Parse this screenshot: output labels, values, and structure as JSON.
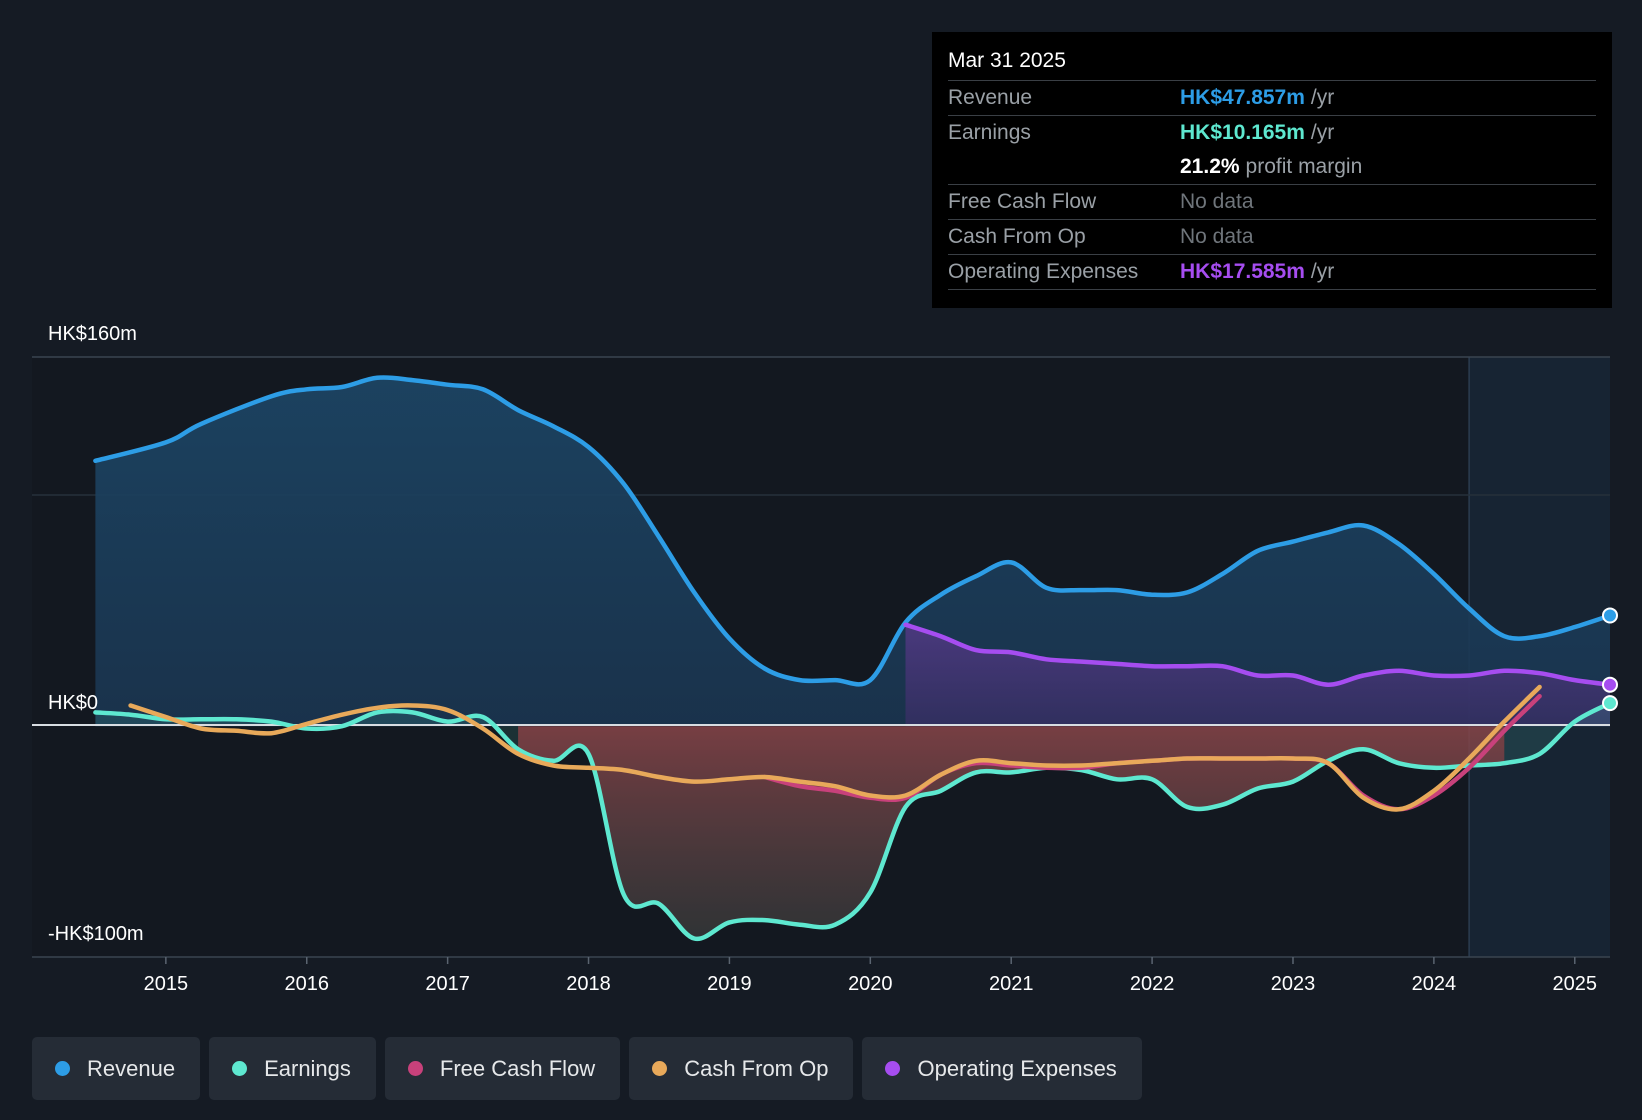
{
  "tooltip": {
    "date": "Mar 31 2025",
    "rows": [
      {
        "label": "Revenue",
        "value": "HK$47.857m",
        "unit": "/yr",
        "color": "#2d9de6"
      },
      {
        "label": "Earnings",
        "value": "HK$10.165m",
        "unit": "/yr",
        "color": "#5ee8d0"
      },
      {
        "label": "",
        "value": "21.2%",
        "unit": "profit margin",
        "color": "#ffffff"
      },
      {
        "label": "Free Cash Flow",
        "value": "No data",
        "unit": "",
        "color": "#6f757b"
      },
      {
        "label": "Cash From Op",
        "value": "No data",
        "unit": "",
        "color": "#6f757b"
      },
      {
        "label": "Operating Expenses",
        "value": "HK$17.585m",
        "unit": "/yr",
        "color": "#a64df0"
      }
    ]
  },
  "legend": [
    {
      "label": "Revenue",
      "color": "#2d9de6"
    },
    {
      "label": "Earnings",
      "color": "#5ee8d0"
    },
    {
      "label": "Free Cash Flow",
      "color": "#c8417b"
    },
    {
      "label": "Cash From Op",
      "color": "#e8a95a"
    },
    {
      "label": "Operating Expenses",
      "color": "#a64df0"
    }
  ],
  "chart_data": {
    "type": "area",
    "title": "",
    "y_labels": [
      "HK$160m",
      "HK$0",
      "-HK$100m"
    ],
    "ylim": [
      -100,
      160
    ],
    "xlim": [
      2014.05,
      2025.25
    ],
    "x_ticks": [
      2015,
      2016,
      2017,
      2018,
      2019,
      2020,
      2021,
      2022,
      2023,
      2024,
      2025
    ],
    "x_tick_labels": [
      "2015",
      "2016",
      "2017",
      "2018",
      "2019",
      "2020",
      "2021",
      "2022",
      "2023",
      "2024",
      "2025"
    ],
    "forecast_start": 2024.25,
    "series": [
      {
        "name": "Revenue",
        "color": "#2d9de6",
        "points": [
          [
            2014.5,
            115
          ],
          [
            2015.0,
            123
          ],
          [
            2015.25,
            131
          ],
          [
            2015.75,
            143
          ],
          [
            2016.0,
            146
          ],
          [
            2016.25,
            147
          ],
          [
            2016.5,
            151
          ],
          [
            2016.75,
            150
          ],
          [
            2017.0,
            148
          ],
          [
            2017.25,
            146
          ],
          [
            2017.5,
            137
          ],
          [
            2017.75,
            130
          ],
          [
            2018.0,
            121
          ],
          [
            2018.25,
            105
          ],
          [
            2018.5,
            82
          ],
          [
            2018.75,
            58
          ],
          [
            2019.0,
            38
          ],
          [
            2019.25,
            25
          ],
          [
            2019.5,
            20
          ],
          [
            2019.75,
            20
          ],
          [
            2020.0,
            20
          ],
          [
            2020.25,
            45
          ],
          [
            2020.5,
            57
          ],
          [
            2020.75,
            65
          ],
          [
            2021.0,
            71
          ],
          [
            2021.25,
            60
          ],
          [
            2021.5,
            59
          ],
          [
            2021.75,
            59
          ],
          [
            2022.0,
            57
          ],
          [
            2022.25,
            58
          ],
          [
            2022.5,
            66
          ],
          [
            2022.75,
            76
          ],
          [
            2023.0,
            80
          ],
          [
            2023.25,
            84
          ],
          [
            2023.5,
            87
          ],
          [
            2023.75,
            79
          ],
          [
            2024.0,
            66
          ],
          [
            2024.25,
            51
          ],
          [
            2024.5,
            39
          ],
          [
            2024.75,
            39
          ],
          [
            2025.0,
            43
          ],
          [
            2025.25,
            48
          ]
        ]
      },
      {
        "name": "Earnings",
        "color": "#5ee8d0",
        "points": [
          [
            2014.5,
            6
          ],
          [
            2014.75,
            5
          ],
          [
            2015.0,
            3
          ],
          [
            2015.25,
            3
          ],
          [
            2015.5,
            3
          ],
          [
            2015.75,
            2
          ],
          [
            2016.0,
            -1
          ],
          [
            2016.25,
            0
          ],
          [
            2016.5,
            6
          ],
          [
            2016.75,
            6
          ],
          [
            2017.0,
            2
          ],
          [
            2017.25,
            4
          ],
          [
            2017.5,
            -10
          ],
          [
            2017.75,
            -15
          ],
          [
            2018.0,
            -12
          ],
          [
            2018.25,
            -73
          ],
          [
            2018.5,
            -77
          ],
          [
            2018.75,
            -92
          ],
          [
            2019.0,
            -85
          ],
          [
            2019.25,
            -84
          ],
          [
            2019.5,
            -86
          ],
          [
            2019.75,
            -86
          ],
          [
            2020.0,
            -72
          ],
          [
            2020.25,
            -35
          ],
          [
            2020.5,
            -28
          ],
          [
            2020.75,
            -20
          ],
          [
            2021.0,
            -20
          ],
          [
            2021.25,
            -18
          ],
          [
            2021.5,
            -19
          ],
          [
            2021.75,
            -23
          ],
          [
            2022.0,
            -23
          ],
          [
            2022.25,
            -35
          ],
          [
            2022.5,
            -34
          ],
          [
            2022.75,
            -27
          ],
          [
            2023.0,
            -24
          ],
          [
            2023.25,
            -15
          ],
          [
            2023.5,
            -10
          ],
          [
            2023.75,
            -16
          ],
          [
            2024.0,
            -18
          ],
          [
            2024.25,
            -17
          ],
          [
            2024.5,
            -16
          ],
          [
            2024.75,
            -12
          ],
          [
            2025.0,
            2
          ],
          [
            2025.25,
            10
          ]
        ]
      },
      {
        "name": "Free Cash Flow",
        "color": "#c8417b",
        "points": [
          [
            2019.25,
            -22
          ],
          [
            2019.5,
            -26
          ],
          [
            2019.75,
            -28
          ],
          [
            2020.0,
            -31
          ],
          [
            2020.25,
            -31
          ],
          [
            2020.5,
            -21
          ],
          [
            2020.75,
            -16
          ],
          [
            2021.0,
            -17
          ],
          [
            2021.25,
            -18
          ],
          [
            2021.5,
            -18
          ],
          [
            2021.75,
            -16
          ],
          [
            2022.0,
            -15
          ],
          [
            2022.25,
            -14
          ],
          [
            2022.5,
            -14
          ],
          [
            2022.75,
            -14
          ],
          [
            2023.0,
            -14
          ],
          [
            2023.25,
            -16
          ],
          [
            2023.5,
            -30
          ],
          [
            2023.75,
            -36
          ],
          [
            2024.0,
            -30
          ],
          [
            2024.25,
            -18
          ],
          [
            2024.5,
            -2
          ],
          [
            2024.75,
            13
          ]
        ]
      },
      {
        "name": "Cash From Op",
        "color": "#e8a95a",
        "points": [
          [
            2014.75,
            9
          ],
          [
            2015.0,
            4
          ],
          [
            2015.25,
            -1
          ],
          [
            2015.5,
            -2
          ],
          [
            2015.75,
            -3
          ],
          [
            2016.0,
            1
          ],
          [
            2016.25,
            5
          ],
          [
            2016.5,
            8
          ],
          [
            2016.75,
            9
          ],
          [
            2017.0,
            7
          ],
          [
            2017.25,
            -1
          ],
          [
            2017.5,
            -12
          ],
          [
            2017.75,
            -17
          ],
          [
            2018.0,
            -18
          ],
          [
            2018.25,
            -19
          ],
          [
            2018.5,
            -22
          ],
          [
            2018.75,
            -24
          ],
          [
            2019.0,
            -23
          ],
          [
            2019.25,
            -22
          ],
          [
            2019.5,
            -24
          ],
          [
            2019.75,
            -26
          ],
          [
            2020.0,
            -30
          ],
          [
            2020.25,
            -30
          ],
          [
            2020.5,
            -21
          ],
          [
            2020.75,
            -15
          ],
          [
            2021.0,
            -16
          ],
          [
            2021.25,
            -17
          ],
          [
            2021.5,
            -17
          ],
          [
            2021.75,
            -16
          ],
          [
            2022.0,
            -15
          ],
          [
            2022.25,
            -14
          ],
          [
            2022.5,
            -14
          ],
          [
            2022.75,
            -14
          ],
          [
            2023.0,
            -14
          ],
          [
            2023.25,
            -16
          ],
          [
            2023.5,
            -31
          ],
          [
            2023.75,
            -36
          ],
          [
            2024.0,
            -28
          ],
          [
            2024.25,
            -14
          ],
          [
            2024.5,
            2
          ],
          [
            2024.75,
            17
          ]
        ]
      },
      {
        "name": "Operating Expenses",
        "color": "#a64df0",
        "points": [
          [
            2020.25,
            44
          ],
          [
            2020.5,
            39
          ],
          [
            2020.75,
            33
          ],
          [
            2021.0,
            32
          ],
          [
            2021.25,
            29
          ],
          [
            2021.5,
            28
          ],
          [
            2021.75,
            27
          ],
          [
            2022.0,
            26
          ],
          [
            2022.25,
            26
          ],
          [
            2022.5,
            26
          ],
          [
            2022.75,
            22
          ],
          [
            2023.0,
            22
          ],
          [
            2023.25,
            18
          ],
          [
            2023.5,
            22
          ],
          [
            2023.75,
            24
          ],
          [
            2024.0,
            22
          ],
          [
            2024.25,
            22
          ],
          [
            2024.5,
            24
          ],
          [
            2024.75,
            23
          ],
          [
            2025.0,
            20
          ],
          [
            2025.25,
            18
          ]
        ]
      }
    ]
  }
}
